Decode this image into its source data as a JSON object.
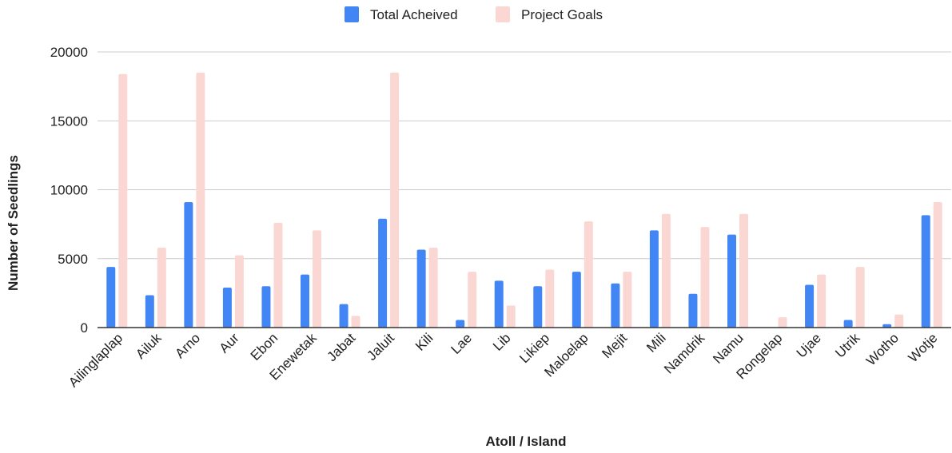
{
  "chart_data": {
    "type": "bar",
    "xlabel": "Atoll / Island",
    "ylabel": "Number of Seedlings",
    "ylim": [
      0,
      20000
    ],
    "yticks": [
      0,
      5000,
      10000,
      15000,
      20000
    ],
    "grid": true,
    "legend_position": "top",
    "categories": [
      "Ailinglaplap",
      "Ailuk",
      "Arno",
      "Aur",
      "Ebon",
      "Enewetak",
      "Jabat",
      "Jaluit",
      "Kili",
      "Lae",
      "Lib",
      "Likiep",
      "Maloelap",
      "Mejit",
      "Mili",
      "Namdrik",
      "Namu",
      "Rongelap",
      "Ujae",
      "Utrik",
      "Wotho",
      "Wotje"
    ],
    "series": [
      {
        "name": "Total Acheived",
        "color": "#4285f4",
        "values": [
          4400,
          2350,
          9100,
          2900,
          3000,
          3850,
          1700,
          7900,
          5650,
          550,
          3400,
          3000,
          4050,
          3200,
          7050,
          2450,
          6750,
          0,
          3100,
          550,
          250,
          8150
        ]
      },
      {
        "name": "Project Goals",
        "color": "#fbd7d4",
        "values": [
          18400,
          5800,
          18500,
          5250,
          7600,
          7050,
          850,
          18500,
          5800,
          4050,
          1600,
          4200,
          7700,
          4050,
          8250,
          7300,
          8250,
          750,
          3850,
          4400,
          950,
          9100
        ]
      }
    ]
  }
}
